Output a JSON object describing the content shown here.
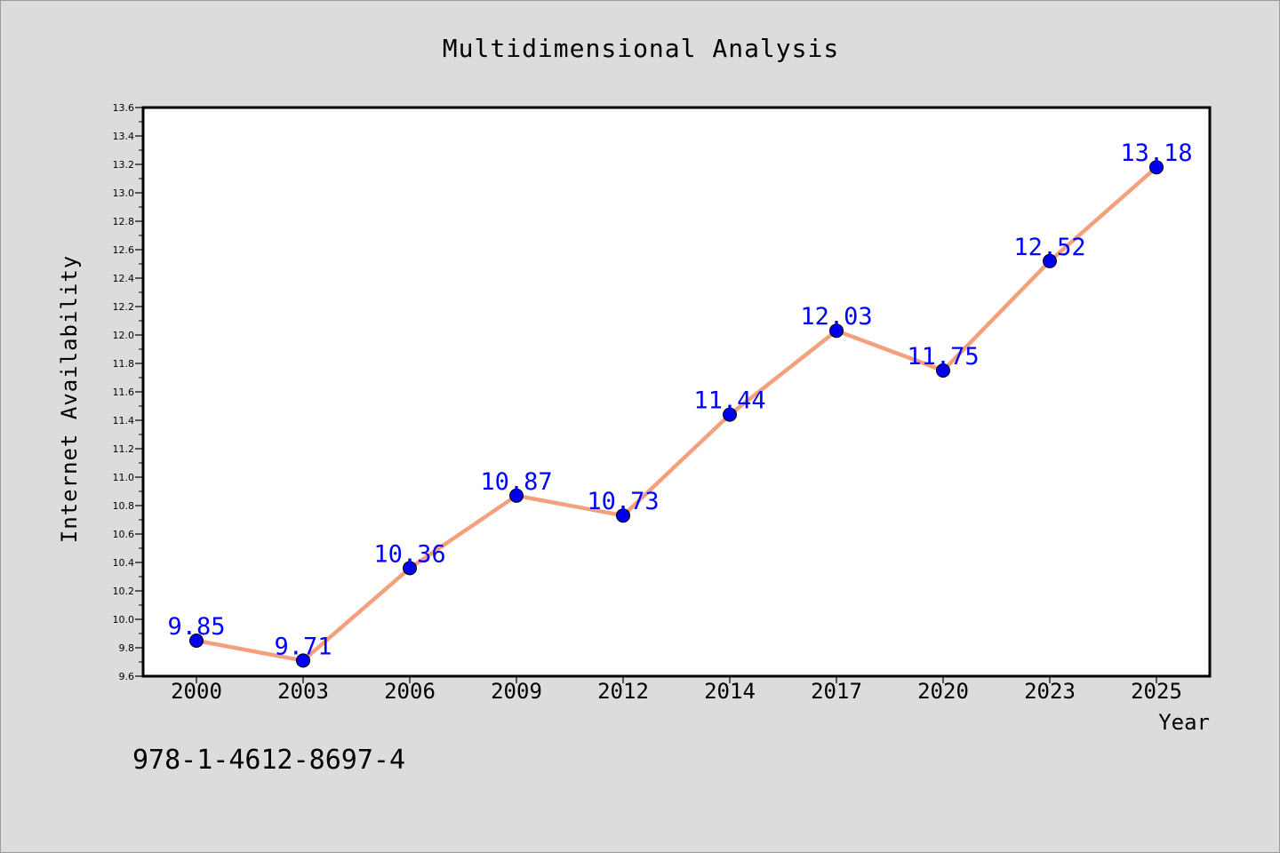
{
  "chart_data": {
    "type": "line",
    "title": "Multidimensional Analysis",
    "xlabel": "Year",
    "ylabel": "Internet Availability",
    "categories": [
      "2000",
      "2003",
      "2006",
      "2009",
      "2012",
      "2014",
      "2017",
      "2020",
      "2023",
      "2025"
    ],
    "series": [
      {
        "values": [
          9.85,
          9.71,
          10.36,
          10.87,
          10.73,
          11.44,
          12.03,
          11.75,
          12.52,
          13.18
        ],
        "data_labels": [
          "9.85",
          "9.71",
          "10.36",
          "10.87",
          "10.73",
          "11.44",
          "12.03",
          "11.75",
          "12.52",
          "13.18"
        ],
        "line_color": "#f4a07c",
        "marker_color": "#0000ee",
        "label_color": "#0000ff"
      }
    ],
    "ylim": [
      9.6,
      13.6
    ],
    "yticks": [
      "9.6",
      "9.8",
      "10.0",
      "10.2",
      "10.4",
      "10.6",
      "10.8",
      "11.0",
      "11.2",
      "11.4",
      "11.6",
      "11.8",
      "12.0",
      "12.2",
      "12.4",
      "12.6",
      "12.8",
      "13.0",
      "13.2",
      "13.4",
      "13.6"
    ],
    "grid": false,
    "legend": "none"
  },
  "annotation": "978-1-4612-8697-4",
  "colors": {
    "background": "#dcdcdc",
    "plot_background": "#ffffff",
    "axis": "#000000",
    "text": "#000000"
  }
}
